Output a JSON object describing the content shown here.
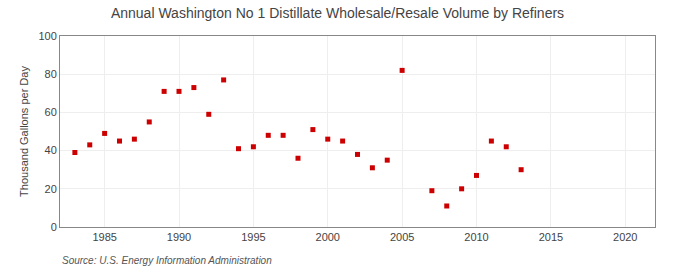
{
  "chart_data": {
    "type": "scatter",
    "title": "Annual Washington No 1 Distillate Wholesale/Resale Volume by Refiners",
    "ylabel": "Thousand Gallons per Day",
    "annotations": [
      "Source: U.S. Energy Information Administration"
    ],
    "x": [
      1983,
      1984,
      1985,
      1986,
      1987,
      1988,
      1989,
      1990,
      1991,
      1992,
      1993,
      1994,
      1995,
      1996,
      1997,
      1998,
      1999,
      2000,
      2001,
      2002,
      2003,
      2004,
      2005,
      2007,
      2008,
      2009,
      2010,
      2011,
      2012,
      2013
    ],
    "values": [
      39,
      43,
      49,
      45,
      46,
      55,
      71,
      71,
      73,
      59,
      77,
      41,
      42,
      48,
      48,
      36,
      51,
      46,
      45,
      38,
      31,
      35,
      82,
      19,
      11,
      20,
      27,
      45,
      42,
      30
    ],
    "color": "#cc0000",
    "marker": "square",
    "xlim": [
      1982,
      2022
    ],
    "ylim": [
      0,
      100
    ],
    "xticks": [
      1985,
      1990,
      1995,
      2000,
      2005,
      2010,
      2015,
      2020
    ],
    "yticks": [
      0,
      20,
      40,
      60,
      80,
      100
    ],
    "grid": true
  }
}
